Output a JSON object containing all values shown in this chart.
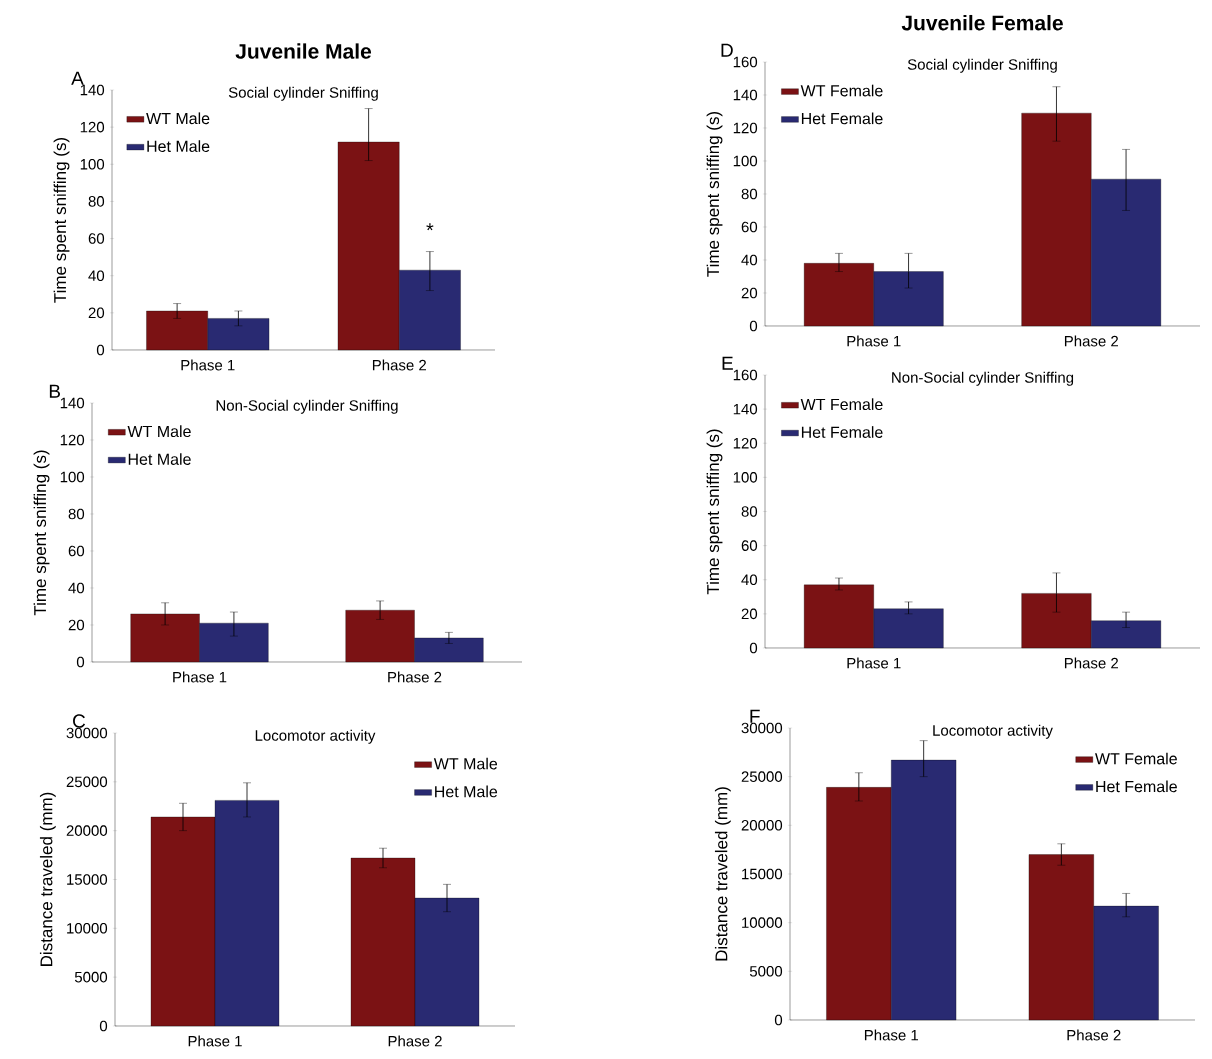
{
  "chart_data": [
    {
      "type": "bar",
      "title": "Social cylinder Sniffing",
      "ylabel": "Time spent sniffing (s)",
      "categories": [
        "Phase 1",
        "Phase 2"
      ],
      "ylim": [
        0,
        140
      ],
      "yticks": [
        0,
        20,
        40,
        60,
        80,
        100,
        120,
        140
      ],
      "legend": "top left",
      "annotations": [
        "Juvenile Male",
        {
          "text": "*",
          "x": "Phase 2",
          "y": 58
        },
        "A"
      ],
      "series": [
        {
          "name": "WT Male",
          "color": "#7b1214",
          "values": [
            21,
            112
          ],
          "errors": [
            [
              17,
              25
            ],
            [
              102,
              130
            ]
          ]
        },
        {
          "name": "Het Male",
          "color": "#292a72",
          "values": [
            17,
            43
          ],
          "errors": [
            [
              13,
              21
            ],
            [
              32,
              53
            ]
          ]
        }
      ]
    },
    {
      "type": "bar",
      "title": "Non-Social cylinder Sniffing",
      "ylabel": "Time spent sniffing (s)",
      "categories": [
        "Phase 1",
        "Phase 2"
      ],
      "ylim": [
        0,
        140
      ],
      "yticks": [
        0,
        20,
        40,
        60,
        80,
        100,
        120,
        140
      ],
      "legend": "top left",
      "annotations": [
        "B"
      ],
      "series": [
        {
          "name": "WT Male",
          "color": "#7b1214",
          "values": [
            26,
            28
          ],
          "errors": [
            [
              20,
              32
            ],
            [
              23,
              33
            ]
          ]
        },
        {
          "name": "Het Male",
          "color": "#292a72",
          "values": [
            21,
            13
          ],
          "errors": [
            [
              14,
              27
            ],
            [
              10,
              16
            ]
          ]
        }
      ]
    },
    {
      "type": "bar",
      "title": "Locomotor activity",
      "ylabel": "Distance traveled (mm)",
      "categories": [
        "Phase 1",
        "Phase 2"
      ],
      "ylim": [
        0,
        30000
      ],
      "yticks": [
        0,
        5000,
        10000,
        15000,
        20000,
        25000,
        30000
      ],
      "legend": "top right",
      "annotations": [
        "C"
      ],
      "series": [
        {
          "name": "WT Male",
          "color": "#7b1214",
          "values": [
            21400,
            17200
          ],
          "errors": [
            [
              20000,
              22800
            ],
            [
              16200,
              18200
            ]
          ]
        },
        {
          "name": "Het Male",
          "color": "#292a72",
          "values": [
            23100,
            13100
          ],
          "errors": [
            [
              21400,
              24900
            ],
            [
              11700,
              14500
            ]
          ]
        }
      ]
    },
    {
      "type": "bar",
      "title": "Social cylinder Sniffing",
      "ylabel": "Time spent sniffing (s)",
      "categories": [
        "Phase 1",
        "Phase 2"
      ],
      "ylim": [
        0,
        160
      ],
      "yticks": [
        0,
        20,
        40,
        60,
        80,
        100,
        120,
        140,
        160
      ],
      "legend": "top left",
      "annotations": [
        "Juvenile Female",
        "D"
      ],
      "series": [
        {
          "name": "WT Female",
          "color": "#7b1214",
          "values": [
            38,
            129
          ],
          "errors": [
            [
              33,
              44
            ],
            [
              112,
              145
            ]
          ]
        },
        {
          "name": "Het Female",
          "color": "#292a72",
          "values": [
            33,
            89
          ],
          "errors": [
            [
              23,
              44
            ],
            [
              70,
              107
            ]
          ]
        }
      ]
    },
    {
      "type": "bar",
      "title": "Non-Social cylinder Sniffing",
      "ylabel": "Time spent sniffing (s)",
      "categories": [
        "Phase 1",
        "Phase 2"
      ],
      "ylim": [
        0,
        160
      ],
      "yticks": [
        0,
        20,
        40,
        60,
        80,
        100,
        120,
        140,
        160
      ],
      "legend": "top left",
      "annotations": [
        "E"
      ],
      "series": [
        {
          "name": "WT Female",
          "color": "#7b1214",
          "values": [
            37,
            32
          ],
          "errors": [
            [
              34,
              41
            ],
            [
              21,
              44
            ]
          ]
        },
        {
          "name": "Het Female",
          "color": "#292a72",
          "values": [
            23,
            16
          ],
          "errors": [
            [
              20,
              27
            ],
            [
              12,
              21
            ]
          ]
        }
      ]
    },
    {
      "type": "bar",
      "title": "Locomotor activity",
      "ylabel": "Distance traveled (mm)",
      "categories": [
        "Phase 1",
        "Phase 2"
      ],
      "ylim": [
        0,
        30000
      ],
      "yticks": [
        0,
        5000,
        10000,
        15000,
        20000,
        25000,
        30000
      ],
      "legend": "top right",
      "annotations": [
        "F"
      ],
      "series": [
        {
          "name": "WT Female",
          "color": "#7b1214",
          "values": [
            23900,
            17000
          ],
          "errors": [
            [
              22500,
              25400
            ],
            [
              15900,
              18100
            ]
          ]
        },
        {
          "name": "Het Female",
          "color": "#292a72",
          "values": [
            26700,
            11700
          ],
          "errors": [
            [
              25000,
              28700
            ],
            [
              10600,
              13000
            ]
          ]
        }
      ]
    }
  ]
}
